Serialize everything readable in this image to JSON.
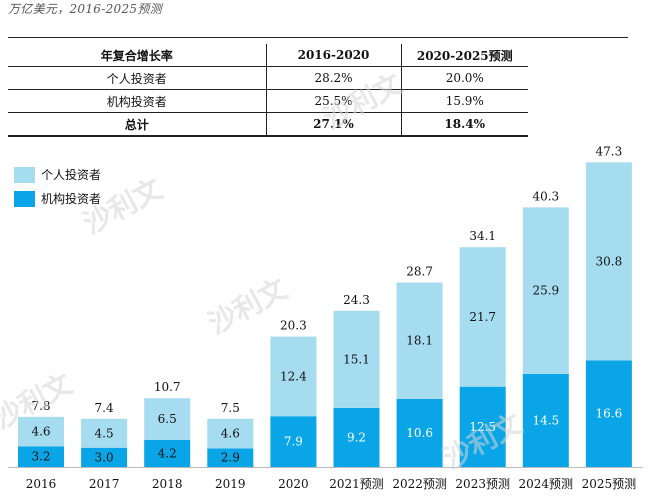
{
  "subtitle": "万亿美元，2016-2025预测",
  "cagr_table": {
    "headers": [
      "年复合增长率",
      "2016-2020",
      "2020-2025预测"
    ],
    "rows": [
      {
        "label": "个人投资者",
        "v1": "28.2%",
        "v2": "20.0%"
      },
      {
        "label": "机构投资者",
        "v1": "25.5%",
        "v2": "15.9%"
      }
    ],
    "total": {
      "label": "总计",
      "v1": "27.1%",
      "v2": "18.4%"
    }
  },
  "watermark": {
    "text": "沙利文"
  },
  "colors": {
    "individual": "#a6dcf0",
    "institutional": "#0aa5e6"
  },
  "chart_data": {
    "type": "bar",
    "stacked": true,
    "categories": [
      "2016",
      "2017",
      "2018",
      "2019",
      "2020",
      "2021预测",
      "2022预测",
      "2023预测",
      "2024预测",
      "2025预测"
    ],
    "series": [
      {
        "name": "机构投资者",
        "values": [
          3.2,
          3.0,
          4.2,
          2.9,
          7.9,
          9.2,
          10.6,
          12.5,
          14.5,
          16.6
        ]
      },
      {
        "name": "个人投资者",
        "values": [
          4.6,
          4.5,
          6.5,
          4.6,
          12.4,
          15.1,
          18.1,
          21.7,
          25.9,
          30.8
        ]
      }
    ],
    "totals": [
      7.8,
      7.4,
      10.7,
      7.5,
      20.3,
      24.3,
      28.7,
      34.1,
      40.3,
      47.3
    ],
    "legend": [
      "个人投资者",
      "机构投资者"
    ],
    "legend_position": "top-left",
    "title": "",
    "xlabel": "",
    "ylabel": "",
    "ylim": [
      0,
      47.3
    ],
    "grid": false
  }
}
